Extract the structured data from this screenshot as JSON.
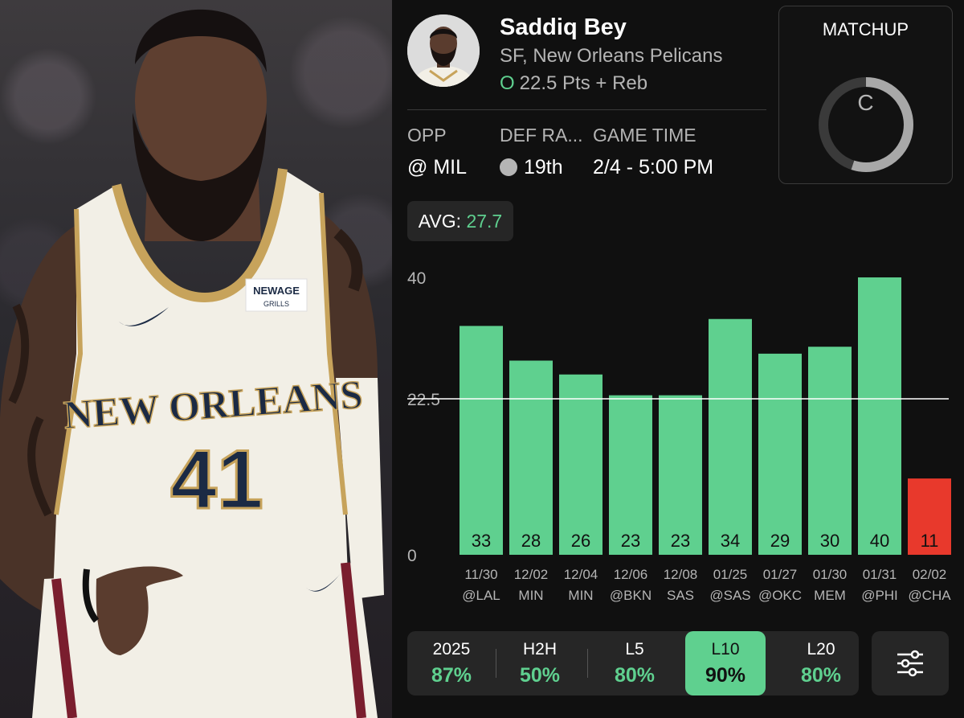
{
  "player": {
    "name": "Saddiq Bey",
    "team": "SF, New Orleans Pelicans",
    "ou_marker": "O",
    "line": "22.5 Pts + Reb"
  },
  "jersey": {
    "city": "NEW ORLEANS",
    "number": "41",
    "patch_top": "NEWAGE",
    "patch_bottom": "GRILLS"
  },
  "stats": {
    "opp_label": "OPP",
    "opp_value": "@ MIL",
    "def_label": "DEF RA...",
    "def_value": "19th",
    "time_label": "GAME TIME",
    "time_value": "2/4 - 5:00 PM"
  },
  "matchup": {
    "title": "MATCHUP",
    "grade": "C",
    "ring_fill": 0.55
  },
  "average": {
    "label": "AVG:",
    "value": "27.7"
  },
  "chart_data": {
    "type": "bar",
    "categories": [
      "11/30",
      "12/02",
      "12/04",
      "12/06",
      "12/08",
      "01/25",
      "01/27",
      "01/30",
      "01/31",
      "02/02"
    ],
    "opponents": [
      "@LAL",
      "MIN",
      "MIN",
      "@BKN",
      "SAS",
      "@SAS",
      "@OKC",
      "MEM",
      "@PHI",
      "@CHA"
    ],
    "values": [
      33,
      28,
      26,
      23,
      23,
      34,
      29,
      30,
      40,
      11
    ],
    "ylim": [
      0,
      40
    ],
    "yticks": [
      "0",
      "22.5",
      "40"
    ],
    "reference_line": 22.5,
    "colors": {
      "over": "#5fd08f",
      "under": "#e8392c"
    }
  },
  "tabs": [
    {
      "label": "2025",
      "value": "87%"
    },
    {
      "label": "H2H",
      "value": "50%"
    },
    {
      "label": "L5",
      "value": "80%"
    },
    {
      "label": "L10",
      "value": "90%"
    },
    {
      "label": "L20",
      "value": "80%"
    }
  ],
  "colors": {
    "accent": "#5fd08f",
    "negative": "#e8392c",
    "panel": "#101010",
    "card": "#262626"
  },
  "icons": {
    "filter": "sliders-icon"
  }
}
